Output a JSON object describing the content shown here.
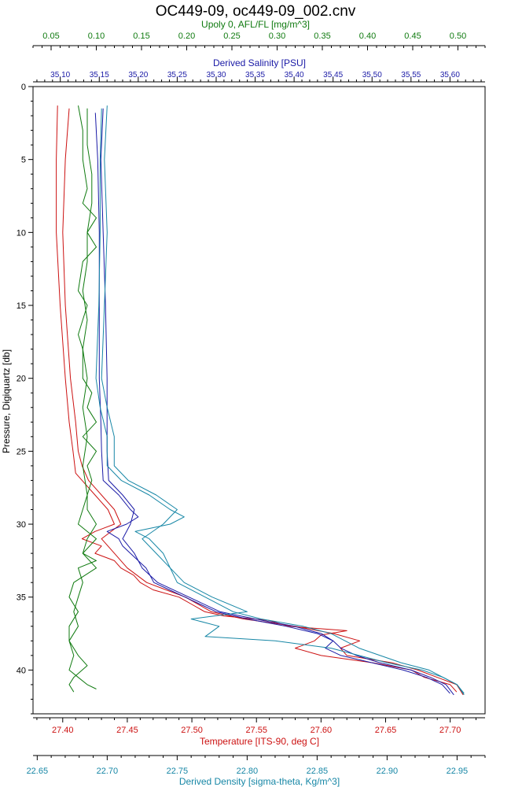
{
  "chart_data": {
    "type": "line",
    "title": "OC449-09, oc449-09_002.cnv",
    "colors": {
      "fluor": "#0f7a0f",
      "salinity": "#1a1aa6",
      "temperature": "#cc1111",
      "density": "#1787a6"
    },
    "y_axis": {
      "label": "Pressure, Digiquartz [db]",
      "range": [
        0,
        43
      ],
      "reversed": true,
      "ticks": [
        "0",
        "5",
        "10",
        "15",
        "20",
        "25",
        "30",
        "35",
        "40"
      ]
    },
    "x_axes": [
      {
        "id": "fluor",
        "label": "Upoly 0, AFL/FL [mg/m^3]",
        "range": [
          0.03,
          0.53
        ],
        "ticks": [
          "0.05",
          "0.10",
          "0.15",
          "0.20",
          "0.25",
          "0.30",
          "0.35",
          "0.40",
          "0.45",
          "0.50"
        ]
      },
      {
        "id": "salinity",
        "label": "Derived Salinity [PSU]",
        "range": [
          35.065,
          35.645
        ],
        "ticks": [
          "35.10",
          "35.15",
          "35.20",
          "35.25",
          "35.30",
          "35.35",
          "35.40",
          "35.45",
          "35.50",
          "35.55",
          "35.60"
        ]
      },
      {
        "id": "temperature",
        "label": "Temperature [ITS-90, deg C]",
        "range": [
          27.377,
          27.727
        ],
        "ticks": [
          "27.40",
          "27.45",
          "27.50",
          "27.55",
          "27.60",
          "27.65",
          "27.70"
        ]
      },
      {
        "id": "density",
        "label": "Derived Density [sigma-theta, Kg/m^3]",
        "range": [
          22.647,
          22.97
        ],
        "ticks": [
          "22.65",
          "22.70",
          "22.75",
          "22.80",
          "22.85",
          "22.90",
          "22.95"
        ]
      }
    ],
    "series": [
      {
        "axis": "temperature",
        "points": [
          [
            1.3,
            27.396
          ],
          [
            5,
            27.395
          ],
          [
            10,
            27.395
          ],
          [
            15,
            27.398
          ],
          [
            20,
            27.402
          ],
          [
            23,
            27.405
          ],
          [
            25,
            27.408
          ],
          [
            26.5,
            27.41
          ],
          [
            27,
            27.415
          ],
          [
            28,
            27.425
          ],
          [
            29,
            27.435
          ],
          [
            30,
            27.44
          ],
          [
            30.5,
            27.425
          ],
          [
            31,
            27.415
          ],
          [
            31.5,
            27.43
          ],
          [
            32,
            27.425
          ],
          [
            32.5,
            27.44
          ],
          [
            33,
            27.445
          ],
          [
            33.5,
            27.455
          ],
          [
            34,
            27.46
          ],
          [
            34.5,
            27.47
          ],
          [
            35,
            27.49
          ],
          [
            35.5,
            27.5
          ],
          [
            36,
            27.51
          ],
          [
            36.3,
            27.525
          ],
          [
            36.6,
            27.56
          ],
          [
            37,
            27.575
          ],
          [
            37.3,
            27.62
          ],
          [
            37.6,
            27.6
          ],
          [
            38,
            27.595
          ],
          [
            38.5,
            27.58
          ],
          [
            39,
            27.6
          ],
          [
            39.5,
            27.64
          ],
          [
            40,
            27.67
          ],
          [
            40.5,
            27.68
          ],
          [
            41,
            27.7
          ],
          [
            41.5,
            27.705
          ]
        ]
      },
      {
        "axis": "temperature",
        "points": [
          [
            1.5,
            27.405
          ],
          [
            5,
            27.402
          ],
          [
            10,
            27.4
          ],
          [
            15,
            27.402
          ],
          [
            20,
            27.406
          ],
          [
            23,
            27.41
          ],
          [
            25,
            27.412
          ],
          [
            26,
            27.415
          ],
          [
            27,
            27.42
          ],
          [
            28,
            27.43
          ],
          [
            29,
            27.44
          ],
          [
            30,
            27.445
          ],
          [
            31,
            27.43
          ],
          [
            32,
            27.44
          ],
          [
            33,
            27.45
          ],
          [
            34,
            27.465
          ],
          [
            34.5,
            27.48
          ],
          [
            35,
            27.495
          ],
          [
            36,
            27.515
          ],
          [
            36.5,
            27.54
          ],
          [
            37,
            27.58
          ],
          [
            37.5,
            27.61
          ],
          [
            38,
            27.63
          ],
          [
            38.5,
            27.615
          ],
          [
            39,
            27.62
          ],
          [
            39.5,
            27.655
          ],
          [
            40,
            27.675
          ],
          [
            40.5,
            27.69
          ],
          [
            41,
            27.705
          ],
          [
            41.7,
            27.71
          ]
        ]
      },
      {
        "axis": "salinity",
        "points": [
          [
            1.8,
            35.145
          ],
          [
            5,
            35.148
          ],
          [
            10,
            35.15
          ],
          [
            15,
            35.15
          ],
          [
            20,
            35.15
          ],
          [
            23,
            35.152
          ],
          [
            25,
            35.153
          ],
          [
            27,
            35.155
          ],
          [
            28,
            35.175
          ],
          [
            29,
            35.19
          ],
          [
            29.5,
            35.2
          ],
          [
            30,
            35.185
          ],
          [
            30.5,
            35.16
          ],
          [
            31,
            35.175
          ],
          [
            31.5,
            35.18
          ],
          [
            32,
            35.19
          ],
          [
            32.5,
            35.2
          ],
          [
            33,
            35.21
          ],
          [
            34,
            35.22
          ],
          [
            34.5,
            35.24
          ],
          [
            35,
            35.26
          ],
          [
            35.5,
            35.28
          ],
          [
            36,
            35.3
          ],
          [
            36.5,
            35.34
          ],
          [
            37,
            35.39
          ],
          [
            37.5,
            35.43
          ],
          [
            38,
            35.45
          ],
          [
            38.5,
            35.44
          ],
          [
            39,
            35.46
          ],
          [
            39.5,
            35.5
          ],
          [
            40,
            35.54
          ],
          [
            40.5,
            35.57
          ],
          [
            41,
            35.59
          ],
          [
            41.6,
            35.6
          ]
        ]
      },
      {
        "axis": "salinity",
        "points": [
          [
            1.5,
            35.155
          ],
          [
            5,
            35.152
          ],
          [
            10,
            35.155
          ],
          [
            15,
            35.158
          ],
          [
            20,
            35.16
          ],
          [
            22,
            35.16
          ],
          [
            25,
            35.16
          ],
          [
            27,
            35.162
          ],
          [
            28,
            35.18
          ],
          [
            29,
            35.195
          ],
          [
            30,
            35.19
          ],
          [
            31,
            35.18
          ],
          [
            32,
            35.195
          ],
          [
            33,
            35.205
          ],
          [
            34,
            35.225
          ],
          [
            35,
            35.265
          ],
          [
            36,
            35.305
          ],
          [
            36.5,
            35.35
          ],
          [
            37,
            35.4
          ],
          [
            37.5,
            35.435
          ],
          [
            38,
            35.45
          ],
          [
            38.5,
            35.46
          ],
          [
            39,
            35.48
          ],
          [
            39.5,
            35.51
          ],
          [
            40,
            35.55
          ],
          [
            40.5,
            35.575
          ],
          [
            41,
            35.595
          ],
          [
            41.7,
            35.605
          ]
        ]
      },
      {
        "axis": "density",
        "points": [
          [
            1.5,
            22.696
          ],
          [
            5,
            22.695
          ],
          [
            10,
            22.695
          ],
          [
            15,
            22.694
          ],
          [
            20,
            22.692
          ],
          [
            22,
            22.695
          ],
          [
            24,
            22.7
          ],
          [
            26,
            22.7
          ],
          [
            27,
            22.71
          ],
          [
            28,
            22.73
          ],
          [
            29,
            22.745
          ],
          [
            29.5,
            22.755
          ],
          [
            30,
            22.745
          ],
          [
            30.5,
            22.72
          ],
          [
            31,
            22.73
          ],
          [
            32,
            22.74
          ],
          [
            33,
            22.745
          ],
          [
            34,
            22.75
          ],
          [
            35,
            22.77
          ],
          [
            36,
            22.79
          ],
          [
            36.5,
            22.81
          ],
          [
            37,
            22.84
          ],
          [
            37.5,
            22.86
          ],
          [
            38,
            22.87
          ],
          [
            38.5,
            22.88
          ],
          [
            39,
            22.895
          ],
          [
            39.5,
            22.91
          ],
          [
            40,
            22.93
          ],
          [
            40.5,
            22.94
          ],
          [
            41,
            22.95
          ],
          [
            41.7,
            22.955
          ]
        ]
      },
      {
        "axis": "density",
        "points": [
          [
            1.3,
            22.7
          ],
          [
            5,
            22.698
          ],
          [
            10,
            22.7
          ],
          [
            15,
            22.698
          ],
          [
            20,
            22.696
          ],
          [
            22,
            22.7
          ],
          [
            24,
            22.705
          ],
          [
            26,
            22.705
          ],
          [
            27,
            22.715
          ],
          [
            28,
            22.735
          ],
          [
            29,
            22.75
          ],
          [
            30,
            22.74
          ],
          [
            31,
            22.725
          ],
          [
            32,
            22.735
          ],
          [
            33,
            22.745
          ],
          [
            34,
            22.755
          ],
          [
            35,
            22.775
          ],
          [
            36,
            22.8
          ],
          [
            36.5,
            22.76
          ],
          [
            37,
            22.78
          ],
          [
            37.7,
            22.77
          ],
          [
            38,
            22.82
          ],
          [
            38.5,
            22.86
          ],
          [
            39,
            22.88
          ],
          [
            39.5,
            22.9
          ],
          [
            40,
            22.925
          ],
          [
            40.5,
            22.94
          ],
          [
            41,
            22.95
          ],
          [
            41.6,
            22.955
          ]
        ]
      },
      {
        "axis": "fluor",
        "points": [
          [
            1.3,
            0.08
          ],
          [
            3,
            0.085
          ],
          [
            5,
            0.085
          ],
          [
            7,
            0.09
          ],
          [
            8,
            0.085
          ],
          [
            9,
            0.1
          ],
          [
            10,
            0.09
          ],
          [
            11,
            0.1
          ],
          [
            12,
            0.085
          ],
          [
            14,
            0.08
          ],
          [
            15,
            0.09
          ],
          [
            17,
            0.08
          ],
          [
            18,
            0.085
          ],
          [
            20,
            0.085
          ],
          [
            21,
            0.095
          ],
          [
            22,
            0.09
          ],
          [
            23,
            0.1
          ],
          [
            24,
            0.085
          ],
          [
            25,
            0.1
          ],
          [
            26,
            0.09
          ],
          [
            27,
            0.095
          ],
          [
            28,
            0.09
          ],
          [
            29,
            0.09
          ],
          [
            30,
            0.1
          ],
          [
            31,
            0.09
          ],
          [
            32,
            0.085
          ],
          [
            33,
            0.1
          ],
          [
            34,
            0.075
          ],
          [
            35,
            0.07
          ],
          [
            36,
            0.08
          ],
          [
            37,
            0.07
          ],
          [
            38,
            0.07
          ],
          [
            39,
            0.075
          ],
          [
            40,
            0.07
          ],
          [
            40.5,
            0.08
          ],
          [
            41,
            0.09
          ],
          [
            41.3,
            0.1
          ]
        ]
      },
      {
        "axis": "fluor",
        "points": [
          [
            1.5,
            0.09
          ],
          [
            4,
            0.09
          ],
          [
            6,
            0.095
          ],
          [
            8,
            0.095
          ],
          [
            10,
            0.09
          ],
          [
            12,
            0.09
          ],
          [
            14,
            0.085
          ],
          [
            16,
            0.09
          ],
          [
            18,
            0.085
          ],
          [
            20,
            0.09
          ],
          [
            22,
            0.085
          ],
          [
            24,
            0.09
          ],
          [
            26,
            0.085
          ],
          [
            28,
            0.09
          ],
          [
            30,
            0.08
          ],
          [
            31,
            0.1
          ],
          [
            32,
            0.085
          ],
          [
            32.5,
            0.1
          ],
          [
            33,
            0.08
          ],
          [
            34,
            0.085
          ],
          [
            35,
            0.08
          ],
          [
            36,
            0.075
          ],
          [
            37,
            0.08
          ],
          [
            38,
            0.07
          ],
          [
            39,
            0.08
          ],
          [
            39.7,
            0.09
          ],
          [
            40.5,
            0.075
          ],
          [
            41,
            0.07
          ],
          [
            41.5,
            0.075
          ]
        ]
      }
    ]
  }
}
